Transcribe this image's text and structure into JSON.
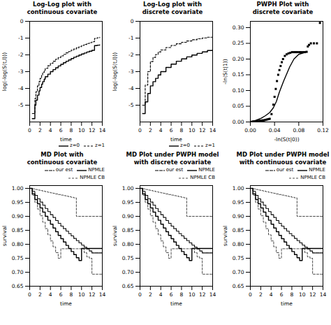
{
  "chart_data": [
    {
      "type": "step",
      "title": "Log-Log plot with\ncontinuous covariate",
      "xlabel": "time",
      "ylabel": "log(-log(S(t,l)))",
      "x": [
        0.5,
        1.0,
        1.2,
        1.5,
        1.8,
        2.0,
        2.3,
        2.5,
        2.8,
        3.0,
        3.5,
        4.0,
        4.5,
        5.0,
        5.5,
        6.0,
        6.5,
        7.0,
        7.5,
        8.0,
        8.5,
        9.0,
        9.5,
        10.0,
        10.5,
        11.0,
        11.5,
        12.0,
        12.5,
        13.0,
        13.5
      ],
      "series": [
        {
          "name": "z=0",
          "color": "black",
          "line_style": "solid",
          "values": [
            -5.8,
            -5.0,
            -4.7,
            -4.4,
            -4.15,
            -3.95,
            -3.75,
            -3.6,
            -3.45,
            -3.3,
            -3.15,
            -3.0,
            -2.88,
            -2.77,
            -2.66,
            -2.56,
            -2.47,
            -2.38,
            -2.3,
            -2.22,
            -2.14,
            -2.08,
            -2.01,
            -1.95,
            -1.89,
            -1.83,
            -1.78,
            -1.73,
            -1.45,
            -1.42,
            -1.4
          ]
        },
        {
          "name": "z=1",
          "color": "black",
          "line_style": "dashed",
          "values": [
            -5.5,
            -4.6,
            -4.2,
            -3.85,
            -3.6,
            -3.4,
            -3.2,
            -3.05,
            -2.92,
            -2.8,
            -2.65,
            -2.5,
            -2.38,
            -2.26,
            -2.16,
            -2.06,
            -1.97,
            -1.88,
            -1.8,
            -1.72,
            -1.65,
            -1.58,
            -1.51,
            -1.44,
            -1.38,
            -1.32,
            -1.27,
            -1.22,
            -1.02,
            -0.98,
            -0.95
          ]
        }
      ],
      "xlim": [
        0,
        14
      ],
      "ylim": [
        -6,
        0
      ],
      "xticks": [
        0,
        2,
        4,
        6,
        8,
        10,
        12,
        14
      ],
      "yticks": [
        -5,
        -4,
        -3,
        -2,
        -1,
        0
      ],
      "legend": "lower right"
    },
    {
      "type": "step",
      "title": "Log-Log plot with\ndiscrete covariate",
      "xlabel": "time",
      "ylabel": "log(-log(S(t,l)))",
      "x": [
        0.5,
        1.0,
        1.5,
        2.0,
        2.5,
        3.0,
        3.5,
        4.0,
        5.0,
        6.0,
        7.0,
        8.0,
        9.0,
        10.0,
        11.0,
        12.0,
        13.0,
        14.0
      ],
      "series": [
        {
          "name": "z=0",
          "color": "black",
          "line_style": "solid",
          "values": [
            -5.5,
            -4.8,
            -4.3,
            -3.85,
            -3.6,
            -3.4,
            -3.2,
            -3.0,
            -2.75,
            -2.55,
            -2.38,
            -2.24,
            -2.12,
            -2.01,
            -1.91,
            -1.82,
            -1.74,
            -1.68
          ]
        },
        {
          "name": "z=1",
          "color": "black",
          "line_style": "dashed",
          "values": [
            -5.0,
            -3.8,
            -3.0,
            -2.4,
            -2.15,
            -1.98,
            -1.83,
            -1.71,
            -1.56,
            -1.44,
            -1.34,
            -1.25,
            -1.17,
            -1.1,
            -1.04,
            -0.99,
            -0.95,
            -0.92
          ]
        }
      ],
      "xlim": [
        0,
        14
      ],
      "ylim": [
        -6,
        0
      ],
      "xticks": [
        0,
        2,
        4,
        6,
        8,
        10,
        12,
        14
      ],
      "yticks": [
        -5,
        -4,
        -3,
        -2,
        -1,
        0
      ],
      "legend": "lower right"
    },
    {
      "type": "line",
      "title": "PWPH Plot with\ndiscrete covariate",
      "xlabel": "-ln(S(t|0))",
      "ylabel": "-ln(S(t|1))",
      "series": [
        {
          "type": "line",
          "color": "black",
          "line_style": "solid",
          "x": [
            0.0,
            0.009,
            0.018,
            0.025,
            0.032,
            0.038,
            0.043,
            0.048,
            0.055,
            0.065,
            0.072,
            0.08,
            0.088
          ],
          "values": [
            0.0,
            0.005,
            0.012,
            0.02,
            0.03,
            0.045,
            0.065,
            0.095,
            0.13,
            0.175,
            0.2,
            0.215,
            0.22
          ]
        },
        {
          "type": "scatter",
          "color": "black",
          "marker": "square",
          "x": [
            0.001,
            0.002,
            0.003,
            0.005,
            0.006,
            0.007,
            0.009,
            0.01,
            0.011,
            0.013,
            0.014,
            0.016,
            0.018,
            0.02,
            0.022,
            0.024,
            0.026,
            0.028,
            0.03,
            0.032,
            0.035,
            0.038,
            0.04,
            0.042,
            0.044,
            0.046,
            0.048,
            0.05,
            0.052,
            0.054,
            0.057,
            0.06,
            0.063,
            0.066,
            0.069,
            0.072,
            0.075,
            0.078,
            0.081,
            0.084,
            0.087,
            0.09,
            0.093,
            0.095,
            0.097,
            0.1,
            0.105,
            0.11,
            0.115
          ],
          "values": [
            0.0,
            0.0,
            0.001,
            0.001,
            0.001,
            0.002,
            0.002,
            0.002,
            0.003,
            0.003,
            0.003,
            0.004,
            0.004,
            0.005,
            0.005,
            0.006,
            0.007,
            0.008,
            0.009,
            0.01,
            0.025,
            0.055,
            0.08,
            0.105,
            0.13,
            0.15,
            0.165,
            0.178,
            0.19,
            0.2,
            0.21,
            0.215,
            0.218,
            0.22,
            0.222,
            0.222,
            0.222,
            0.222,
            0.222,
            0.222,
            0.222,
            0.222,
            0.223,
            0.24,
            0.245,
            0.25,
            0.25,
            0.25,
            0.315
          ]
        }
      ],
      "xlim": [
        0.0,
        0.12
      ],
      "ylim": [
        0.0,
        0.32
      ],
      "xticks": [
        {
          "value": 0,
          "label": "0.00"
        },
        0.04,
        0.08,
        0.12
      ],
      "yticks": [
        {
          "value": 0,
          "label": "0.00"
        },
        0.05,
        {
          "value": 0.1,
          "label": "0.10"
        },
        0.15,
        {
          "value": 0.2,
          "label": "0.20"
        },
        0.25,
        {
          "value": 0.3,
          "label": "0.30"
        }
      ]
    },
    {
      "type": "step",
      "title": "MD Plot with\ncontinuous covariate",
      "xlabel": "time",
      "ylabel": "survival",
      "x": [
        0,
        0.5,
        1,
        1.5,
        2,
        2.5,
        3,
        3.5,
        4,
        4.5,
        5,
        5.5,
        6,
        6.5,
        7,
        7.5,
        8,
        8.5,
        9,
        9.5,
        10,
        10.5,
        11,
        11.5,
        12,
        14
      ],
      "series": [
        {
          "name": "our est",
          "color": "black",
          "line_style": "densely dashed",
          "values": [
            1.0,
            0.99,
            0.975,
            0.963,
            0.951,
            0.94,
            0.928,
            0.917,
            0.906,
            0.896,
            0.885,
            0.875,
            0.865,
            0.856,
            0.847,
            0.838,
            0.83,
            0.821,
            0.813,
            0.805,
            0.797,
            0.79,
            0.783,
            0.776,
            0.769,
            0.769
          ]
        },
        {
          "name": "NPMLE",
          "color": "black",
          "line_style": "solid",
          "values": [
            1.0,
            0.98,
            0.96,
            0.945,
            0.93,
            0.915,
            0.9,
            0.886,
            0.872,
            0.858,
            0.845,
            0.832,
            0.82,
            0.808,
            0.796,
            0.785,
            0.774,
            0.763,
            0.752,
            0.742,
            0.785,
            0.785,
            0.785,
            0.785,
            0.785,
            0.785
          ]
        },
        {
          "name": "NPMLE CB",
          "color": "black",
          "line_style": "dashed",
          "upper": [
            1.0,
            0.998,
            0.996,
            0.994,
            0.992,
            0.99,
            0.988,
            0.986,
            0.984,
            0.982,
            0.98,
            0.978,
            0.976,
            0.974,
            0.972,
            0.97,
            0.968,
            0.966,
            0.9,
            0.9,
            0.9,
            0.9,
            0.9,
            0.9,
            0.9,
            0.9
          ],
          "lower": [
            1.0,
            0.975,
            0.95,
            0.926,
            0.902,
            0.879,
            0.856,
            0.834,
            0.812,
            0.791,
            0.77,
            0.75,
            0.784,
            0.784,
            0.784,
            0.784,
            0.784,
            0.784,
            0.784,
            0.784,
            0.784,
            0.77,
            0.755,
            0.75,
            0.693,
            0.693
          ]
        }
      ],
      "xlim": [
        0,
        14
      ],
      "ylim": [
        0.65,
        1.01
      ],
      "xticks": [
        0,
        2,
        4,
        6,
        8,
        10,
        12,
        14
      ],
      "yticks": [
        0.65,
        {
          "value": 0.7,
          "label": "0.70"
        },
        0.75,
        {
          "value": 0.8,
          "label": "0.80"
        },
        0.85,
        {
          "value": 0.9,
          "label": "0.90"
        },
        0.95,
        {
          "value": 1,
          "label": "1.00"
        }
      ],
      "legend": "upper right"
    },
    {
      "type": "step",
      "title": "MD Plot under PWPH model\nwith discrete covariate",
      "xlabel": "time",
      "ylabel": "survival",
      "x": [
        0,
        0.5,
        1,
        1.5,
        2,
        2.5,
        3,
        3.5,
        4,
        4.5,
        5,
        5.5,
        6,
        6.5,
        7,
        7.5,
        8,
        8.5,
        9,
        9.5,
        10,
        10.5,
        11,
        11.5,
        12,
        14
      ],
      "series": [
        {
          "name": "our est",
          "color": "black",
          "line_style": "densely dashed",
          "values": [
            1.0,
            0.99,
            0.975,
            0.963,
            0.951,
            0.94,
            0.928,
            0.917,
            0.906,
            0.896,
            0.885,
            0.875,
            0.865,
            0.856,
            0.847,
            0.838,
            0.83,
            0.821,
            0.813,
            0.805,
            0.797,
            0.79,
            0.783,
            0.776,
            0.769,
            0.769
          ]
        },
        {
          "name": "NPMLE",
          "color": "black",
          "line_style": "solid",
          "values": [
            1.0,
            0.98,
            0.96,
            0.945,
            0.93,
            0.915,
            0.9,
            0.886,
            0.872,
            0.858,
            0.845,
            0.832,
            0.82,
            0.808,
            0.796,
            0.785,
            0.774,
            0.763,
            0.752,
            0.742,
            0.785,
            0.785,
            0.785,
            0.785,
            0.785,
            0.785
          ]
        },
        {
          "name": "NPMLE CB",
          "color": "black",
          "line_style": "dashed",
          "upper": [
            1.0,
            0.998,
            0.996,
            0.994,
            0.992,
            0.99,
            0.988,
            0.986,
            0.984,
            0.982,
            0.98,
            0.978,
            0.976,
            0.974,
            0.972,
            0.97,
            0.968,
            0.966,
            0.9,
            0.9,
            0.9,
            0.9,
            0.9,
            0.9,
            0.9,
            0.9
          ],
          "lower": [
            1.0,
            0.975,
            0.95,
            0.926,
            0.902,
            0.879,
            0.856,
            0.834,
            0.812,
            0.791,
            0.77,
            0.75,
            0.784,
            0.784,
            0.784,
            0.784,
            0.784,
            0.784,
            0.784,
            0.784,
            0.784,
            0.77,
            0.755,
            0.75,
            0.693,
            0.693
          ]
        }
      ],
      "xlim": [
        0,
        14
      ],
      "ylim": [
        0.65,
        1.01
      ],
      "xticks": [
        0,
        2,
        4,
        6,
        8,
        10,
        12,
        14
      ],
      "yticks": [
        0.65,
        {
          "value": 0.7,
          "label": "0.70"
        },
        0.75,
        {
          "value": 0.8,
          "label": "0.80"
        },
        0.85,
        {
          "value": 0.9,
          "label": "0.90"
        },
        0.95,
        {
          "value": 1,
          "label": "1.00"
        }
      ],
      "legend": "upper right"
    },
    {
      "type": "step",
      "title": "MD Plot under PWPH model\nwith continuous covariate",
      "xlabel": "time",
      "ylabel": "survival",
      "x": [
        0,
        0.5,
        1,
        1.5,
        2,
        2.5,
        3,
        3.5,
        4,
        4.5,
        5,
        5.5,
        6,
        6.5,
        7,
        7.5,
        8,
        8.5,
        9,
        9.5,
        10,
        10.5,
        11,
        11.5,
        12,
        14
      ],
      "series": [
        {
          "name": "our est",
          "color": "black",
          "line_style": "densely dashed",
          "values": [
            1.0,
            0.99,
            0.975,
            0.963,
            0.951,
            0.94,
            0.928,
            0.917,
            0.906,
            0.896,
            0.885,
            0.875,
            0.865,
            0.856,
            0.847,
            0.838,
            0.83,
            0.821,
            0.813,
            0.805,
            0.797,
            0.79,
            0.783,
            0.776,
            0.769,
            0.769
          ]
        },
        {
          "name": "NPMLE",
          "color": "black",
          "line_style": "solid",
          "values": [
            1.0,
            0.98,
            0.96,
            0.945,
            0.93,
            0.915,
            0.9,
            0.886,
            0.872,
            0.858,
            0.845,
            0.832,
            0.82,
            0.808,
            0.796,
            0.785,
            0.774,
            0.763,
            0.752,
            0.742,
            0.785,
            0.785,
            0.785,
            0.785,
            0.785,
            0.785
          ]
        },
        {
          "name": "NPMLE CB",
          "color": "black",
          "line_style": "dashed",
          "upper": [
            1.0,
            0.998,
            0.996,
            0.994,
            0.992,
            0.99,
            0.988,
            0.986,
            0.984,
            0.982,
            0.98,
            0.978,
            0.976,
            0.974,
            0.972,
            0.97,
            0.968,
            0.966,
            0.9,
            0.9,
            0.9,
            0.9,
            0.9,
            0.9,
            0.9,
            0.9
          ],
          "lower": [
            1.0,
            0.975,
            0.95,
            0.926,
            0.902,
            0.879,
            0.856,
            0.834,
            0.812,
            0.791,
            0.77,
            0.75,
            0.784,
            0.784,
            0.784,
            0.784,
            0.784,
            0.784,
            0.784,
            0.784,
            0.784,
            0.77,
            0.755,
            0.75,
            0.693,
            0.693
          ]
        }
      ],
      "xlim": [
        0,
        14
      ],
      "ylim": [
        0.65,
        1.01
      ],
      "xticks": [
        0,
        2,
        4,
        6,
        8,
        10,
        12,
        14
      ],
      "yticks": [
        0.65,
        {
          "value": 0.7,
          "label": "0.70"
        },
        0.75,
        {
          "value": 0.8,
          "label": "0.80"
        },
        0.85,
        {
          "value": 0.9,
          "label": "0.90"
        },
        0.95,
        {
          "value": 1,
          "label": "1.00"
        }
      ],
      "legend": "upper right"
    }
  ]
}
